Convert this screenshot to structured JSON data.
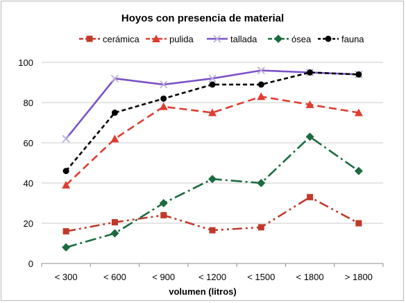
{
  "chart_data": {
    "type": "line",
    "title": "Hoyos con presencia de material",
    "xlabel": "volumen (litros)",
    "ylabel": "",
    "categories": [
      "< 300",
      "< 600",
      "< 900",
      "< 1200",
      "< 1500",
      "< 1800",
      "> 1800"
    ],
    "ylim": [
      0,
      100
    ],
    "yticks": [
      0,
      20,
      40,
      60,
      80,
      100
    ],
    "grid": true,
    "legend_position": "top",
    "series": [
      {
        "name": "cerámica",
        "values": [
          16,
          20.5,
          24,
          16.5,
          18,
          33,
          20
        ],
        "color": "#c0392b",
        "dash": "14,5,3,5,3,5",
        "marker": "square"
      },
      {
        "name": "pulida",
        "values": [
          39,
          62,
          78,
          75,
          83,
          79,
          75
        ],
        "color": "#e03c31",
        "dash": "11,6",
        "marker": "triangle"
      },
      {
        "name": "tallada",
        "values": [
          62,
          92,
          89,
          92,
          96,
          95,
          94
        ],
        "color": "#7b52c7",
        "dash": "",
        "marker": "x"
      },
      {
        "name": "ósea",
        "values": [
          8,
          15,
          30,
          42,
          40,
          63,
          46
        ],
        "color": "#1b6b3f",
        "dash": "16,5,3,5",
        "marker": "diamond"
      },
      {
        "name": "fauna",
        "values": [
          46,
          75,
          82,
          89,
          89,
          95,
          94
        ],
        "color": "#000000",
        "dash": "6,4",
        "marker": "circle"
      }
    ]
  }
}
